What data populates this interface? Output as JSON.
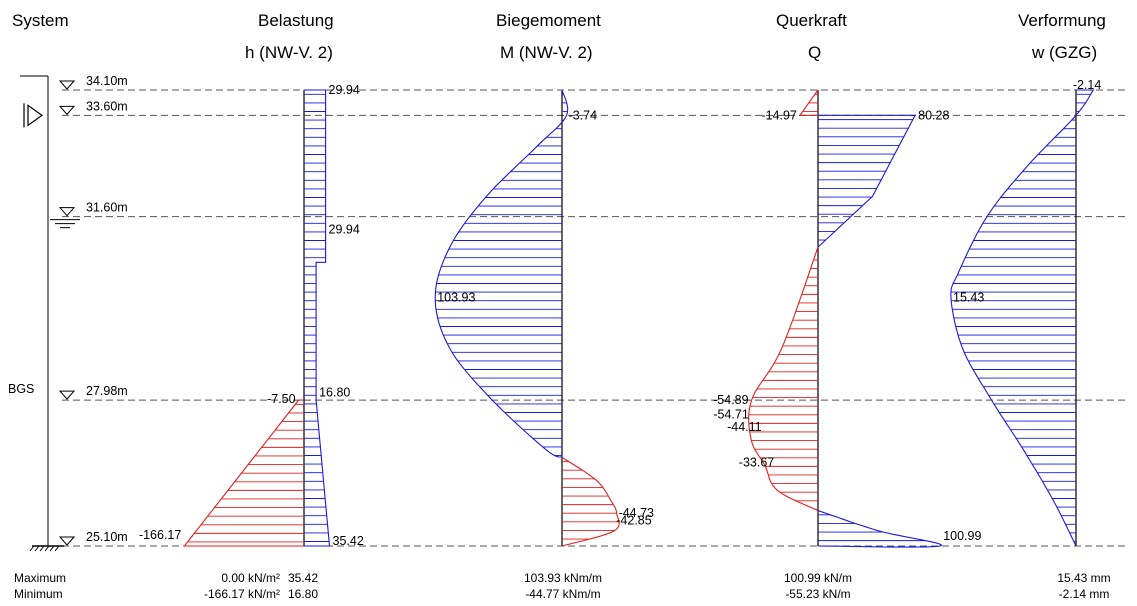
{
  "headers": {
    "system": "System",
    "belastung": {
      "title": "Belastung",
      "sub": "h  (NW-V. 2)"
    },
    "biegemoment": {
      "title": "Biegemoment",
      "sub": "M  (NW-V. 2)"
    },
    "querkraft": {
      "title": "Querkraft",
      "sub": "Q"
    },
    "verformung": {
      "title": "Verformung",
      "sub": "w  (GZG)"
    }
  },
  "levels": [
    {
      "label": "34.10m",
      "elev": 34.1
    },
    {
      "label": "33.60m",
      "elev": 33.6
    },
    {
      "label": "31.60m",
      "elev": 31.6
    },
    {
      "label": "27.98m",
      "elev": 27.98
    },
    {
      "label": "25.10m",
      "elev": 25.1
    }
  ],
  "bgs_label": "BGS",
  "colors": {
    "positive": "#1a1adc",
    "negative": "#e02020",
    "axis": "#000000",
    "dash": "#555555"
  },
  "chart_data": [
    {
      "type": "area",
      "title": "Belastung",
      "subtitle": "h  (NW-V. 2)",
      "x_unit": "kN/m²",
      "y_unit": "m",
      "series": [
        {
          "points": [
            [
              34.1,
              0
            ],
            [
              34.1,
              29.94
            ],
            [
              30.7,
              29.94
            ],
            [
              30.7,
              16.8
            ],
            [
              27.98,
              16.8
            ],
            [
              25.1,
              35.42
            ],
            [
              25.1,
              0
            ]
          ]
        },
        {
          "points": [
            [
              27.98,
              0
            ],
            [
              27.98,
              -7.5
            ],
            [
              25.1,
              -166.17
            ],
            [
              25.1,
              0
            ]
          ]
        }
      ],
      "labels": [
        {
          "text": "29.94",
          "elev": 34.1
        },
        {
          "text": "29.94",
          "elev": 31.35
        },
        {
          "text": "16.80",
          "elev": 28.13
        },
        {
          "text": "-7.50",
          "elev": 28.0
        },
        {
          "text": "-166.17",
          "elev": 25.32
        },
        {
          "text": "35.42",
          "elev": 25.2
        }
      ],
      "maximum": "0.00 kN/m²",
      "minimum": "-166.17 kN/m²",
      "maximum2": "35.42",
      "minimum2": "16.80"
    },
    {
      "type": "area",
      "title": "Biegemoment",
      "subtitle": "M  (NW-V. 2)",
      "x_unit": "kNm/m",
      "y_unit": "m",
      "series": [
        {
          "points": [
            [
              34.1,
              0
            ],
            [
              33.6,
              -3.74
            ],
            [
              33.0,
              20
            ],
            [
              32.0,
              62
            ],
            [
              31.0,
              92
            ],
            [
              30.0,
              103.93
            ],
            [
              29.0,
              92
            ],
            [
              28.0,
              58
            ],
            [
              27.0,
              13
            ],
            [
              26.85,
              0
            ]
          ]
        },
        {
          "points": [
            [
              26.85,
              0
            ],
            [
              26.4,
              -28
            ],
            [
              26.0,
              -40
            ],
            [
              25.75,
              -44.73
            ],
            [
              25.4,
              -42.85
            ],
            [
              25.1,
              0
            ]
          ]
        }
      ],
      "labels": [
        {
          "text": "-3.74",
          "elev": 33.6
        },
        {
          "text": "103.93",
          "elev": 30.0
        },
        {
          "text": "-44.73",
          "elev": 25.75
        },
        {
          "text": "-42.85",
          "elev": 25.6
        }
      ],
      "maximum": "103.93 kNm/m",
      "minimum": "-44.77 kNm/m"
    },
    {
      "type": "area",
      "title": "Querkraft",
      "subtitle": "Q",
      "x_unit": "kN/m",
      "y_unit": "m",
      "series": [
        {
          "points": [
            [
              33.6,
              0
            ],
            [
              33.6,
              80.28
            ],
            [
              32.0,
              45
            ],
            [
              31.0,
              0
            ]
          ]
        },
        {
          "points": [
            [
              34.1,
              0
            ],
            [
              33.6,
              -14.97
            ],
            [
              33.6,
              0
            ]
          ]
        },
        {
          "points": [
            [
              31.0,
              0
            ],
            [
              29.0,
              -30
            ],
            [
              27.98,
              -54.89
            ],
            [
              27.2,
              -55.23
            ],
            [
              26.7,
              -44.11
            ],
            [
              26.2,
              -33.67
            ],
            [
              25.8,
              0
            ]
          ]
        },
        {
          "points": [
            [
              25.8,
              0
            ],
            [
              25.4,
              50
            ],
            [
              25.1,
              100.99
            ],
            [
              25.1,
              0
            ]
          ]
        }
      ],
      "labels": [
        {
          "text": "-14.97",
          "elev": 33.6
        },
        {
          "text": "80.28",
          "elev": 33.6
        },
        {
          "text": "-54.89",
          "elev": 27.98
        },
        {
          "text": "-54.71",
          "elev": 27.7
        },
        {
          "text": "-44.11",
          "elev": 27.45
        },
        {
          "text": "-33.67",
          "elev": 26.75
        },
        {
          "text": "100.99",
          "elev": 25.3
        }
      ],
      "maximum": "100.99 kN/m",
      "minimum": "-55.23 kN/m"
    },
    {
      "type": "area",
      "title": "Verformung",
      "subtitle": "w  (GZG)",
      "x_unit": "mm",
      "y_unit": "m",
      "series": [
        {
          "points": [
            [
              34.1,
              -2.14
            ],
            [
              33.6,
              0
            ],
            [
              32.6,
              6
            ],
            [
              31.6,
              11
            ],
            [
              30.5,
              14.5
            ],
            [
              30.0,
              15.43
            ],
            [
              29.0,
              14
            ],
            [
              28.0,
              10.5
            ],
            [
              27.0,
              6.5
            ],
            [
              26.0,
              2.8
            ],
            [
              25.1,
              0
            ]
          ]
        }
      ],
      "labels": [
        {
          "text": "-2.14",
          "elev": 34.2
        },
        {
          "text": "15.43",
          "elev": 30.0
        }
      ],
      "maximum": "15.43 mm",
      "minimum": "-2.14 mm"
    }
  ],
  "summary": {
    "max_label": "Maximum",
    "min_label": "Minimum"
  }
}
